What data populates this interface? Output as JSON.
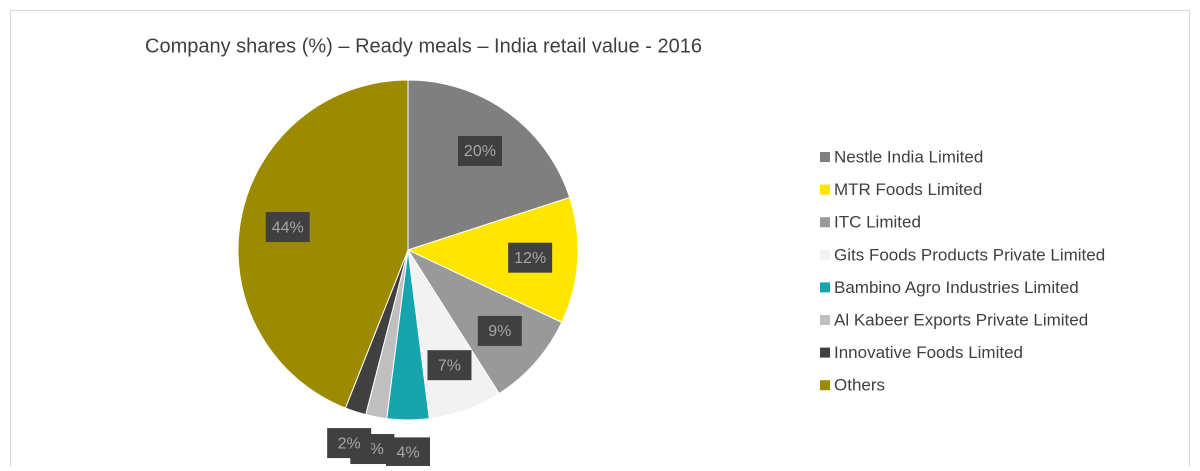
{
  "chart_data": {
    "type": "pie",
    "title": "Company shares (%) – Ready meals – India retail value - 2016",
    "categories": [
      "Nestle India Limited",
      "MTR Foods Limited",
      "ITC Limited",
      "Gits Foods Products Private Limited",
      "Bambino Agro Industries Limited",
      "Al Kabeer Exports Private Limited",
      "Innovative Foods Limited",
      "Others"
    ],
    "values": [
      20,
      12,
      9,
      7,
      4,
      2,
      2,
      44
    ],
    "value_labels": [
      "20%",
      "12%",
      "9%",
      "7%",
      "4%",
      "2%",
      "2%",
      "44%"
    ],
    "colors": [
      "#7f7f7f",
      "#ffe600",
      "#999999",
      "#f2f2f2",
      "#16a4ad",
      "#bfbfbf",
      "#404040",
      "#9c8a00"
    ],
    "legend": "right"
  }
}
